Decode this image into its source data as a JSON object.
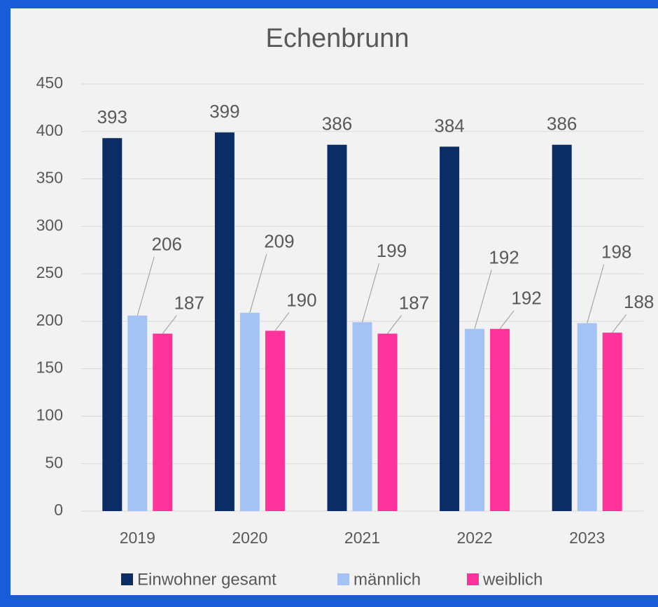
{
  "chart_data": {
    "type": "bar",
    "title": "Echenbrunn",
    "categories": [
      "2019",
      "2020",
      "2021",
      "2022",
      "2023"
    ],
    "series": [
      {
        "name": "Einwohner gesamt",
        "color": "#0b2d66",
        "values": [
          393,
          399,
          386,
          384,
          386
        ]
      },
      {
        "name": "männlich",
        "color": "#a4c2f4",
        "values": [
          206,
          209,
          199,
          192,
          198
        ]
      },
      {
        "name": "weiblich",
        "color": "#ff3399",
        "values": [
          187,
          190,
          187,
          192,
          188
        ]
      }
    ],
    "ylim": [
      0,
      450
    ],
    "yticks": [
      0,
      50,
      100,
      150,
      200,
      250,
      300,
      350,
      400,
      450
    ],
    "grid": true,
    "legend": "bottom"
  }
}
